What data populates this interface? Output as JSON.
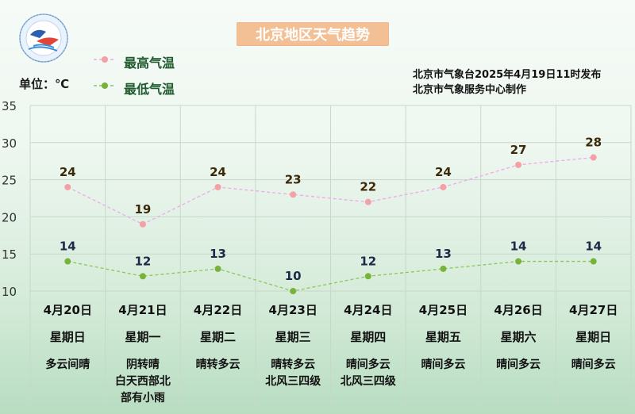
{
  "title": "北京地区天气趋势",
  "legend": {
    "high_label": "最高气温",
    "low_label": "最低气温"
  },
  "unit_label": "单位：℃",
  "issuer": {
    "line1": "北京市气象台2025年4月19日11时发布",
    "line2": "北京市气象服务中心制作"
  },
  "colors": {
    "high": "#f4a0a6",
    "high_line": "#f0a8ec",
    "low": "#77b33a",
    "low_line": "#8cc65a",
    "grid": "#c7d8ca",
    "title_bg": "#f3bf95"
  },
  "days": [
    {
      "date": "4月20日",
      "weekday": "星期日",
      "weather": [
        "多云间晴"
      ]
    },
    {
      "date": "4月21日",
      "weekday": "星期一",
      "weather": [
        "阴转晴",
        "白天西部北",
        "部有小雨"
      ]
    },
    {
      "date": "4月22日",
      "weekday": "星期二",
      "weather": [
        "晴转多云"
      ]
    },
    {
      "date": "4月23日",
      "weekday": "星期三",
      "weather": [
        "晴转多云",
        "北风三四级"
      ]
    },
    {
      "date": "4月24日",
      "weekday": "星期四",
      "weather": [
        "晴间多云",
        "北风三四级"
      ]
    },
    {
      "date": "4月25日",
      "weekday": "星期五",
      "weather": [
        "晴间多云"
      ]
    },
    {
      "date": "4月26日",
      "weekday": "星期六",
      "weather": [
        "晴间多云"
      ]
    },
    {
      "date": "4月27日",
      "weekday": "星期日",
      "weather": [
        "晴间多云"
      ]
    }
  ],
  "chart_data": {
    "type": "line",
    "title": "北京地区天气趋势",
    "ylabel": "单位：℃",
    "ylim": [
      10,
      35
    ],
    "yticks": [
      10,
      15,
      20,
      25,
      30,
      35
    ],
    "categories": [
      "4月20日",
      "4月21日",
      "4月22日",
      "4月23日",
      "4月24日",
      "4月25日",
      "4月26日",
      "4月27日"
    ],
    "series": [
      {
        "name": "最高气温",
        "values": [
          24,
          19,
          24,
          23,
          22,
          24,
          27,
          28
        ]
      },
      {
        "name": "最低气温",
        "values": [
          14,
          12,
          13,
          10,
          12,
          13,
          14,
          14
        ]
      }
    ],
    "grid": true,
    "legend_position": "top-left"
  }
}
